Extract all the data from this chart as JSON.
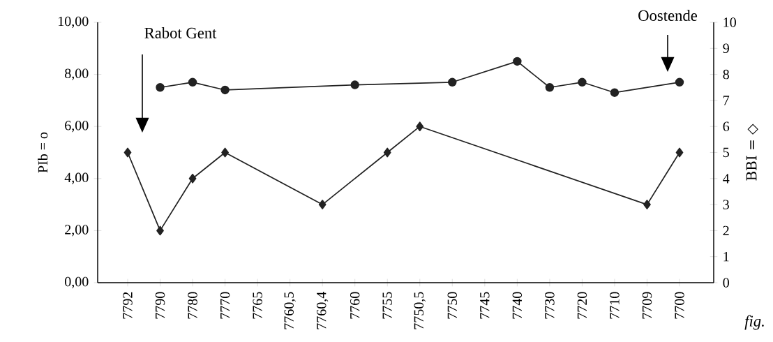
{
  "chart_data": {
    "type": "line",
    "categories": [
      "7792",
      "7790",
      "7780",
      "7770",
      "7765",
      "7760,5",
      "7760,4",
      "7760",
      "7755",
      "7750,5",
      "7750",
      "7745",
      "7740",
      "7730",
      "7720",
      "7710",
      "7709",
      "7700"
    ],
    "ylabel": "PIb = o",
    "y2label": "BBI = ◇",
    "ylim": [
      0,
      10
    ],
    "yticks": [
      {
        "value": 0,
        "label": "0,00"
      },
      {
        "value": 2,
        "label": "2,00"
      },
      {
        "value": 4,
        "label": "4,00"
      },
      {
        "value": 6,
        "label": "6,00"
      },
      {
        "value": 8,
        "label": "8,00"
      },
      {
        "value": 10,
        "label": "10,00"
      }
    ],
    "y2lim": [
      0,
      10
    ],
    "y2ticks": [
      0,
      1,
      2,
      3,
      4,
      5,
      6,
      7,
      8,
      9,
      10
    ],
    "grid": false,
    "series": [
      {
        "color": "#222222",
        "marker": "circle",
        "line_style": "solid",
        "values": [
          null,
          7.5,
          7.7,
          7.4,
          null,
          null,
          null,
          7.6,
          null,
          null,
          7.7,
          null,
          8.5,
          7.5,
          7.7,
          7.3,
          null,
          7.7
        ]
      },
      {
        "color": "#222222",
        "marker": "diamond",
        "line_style": "solid",
        "axis": "y2",
        "values": [
          5,
          2,
          4,
          5,
          null,
          null,
          3,
          null,
          5,
          6,
          null,
          null,
          null,
          null,
          null,
          null,
          3,
          5
        ]
      }
    ],
    "annotations": [
      "Rabot Gent",
      "Oostende",
      "*fig.*"
    ]
  }
}
